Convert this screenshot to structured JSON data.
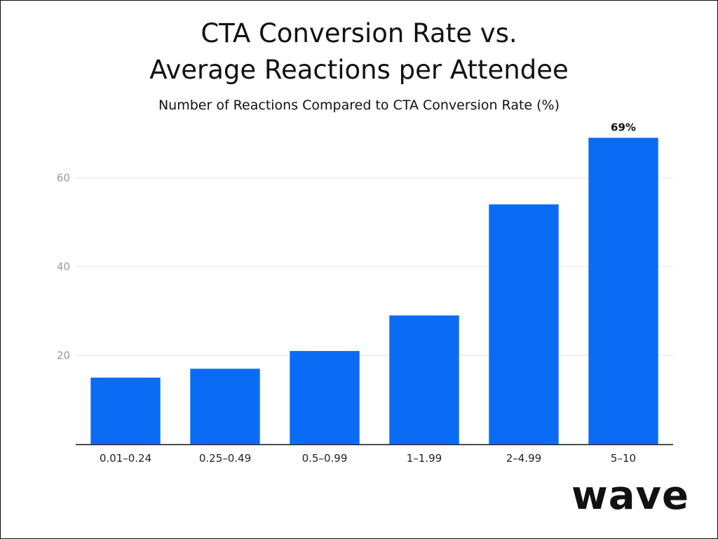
{
  "chart_data": {
    "type": "bar",
    "title_line1": "CTA Conversion Rate vs.",
    "title_line2": "Average Reactions per Attendee",
    "subtitle": "Number of Reactions Compared to CTA Conversion Rate (%)",
    "categories": [
      "0.01–0.24",
      "0.25–0.49",
      "0.5–0.99",
      "1–1.99",
      "2–4.99",
      "5–10"
    ],
    "values": [
      15,
      17,
      21,
      29,
      54,
      69
    ],
    "data_labels": [
      "",
      "",
      "",
      "",
      "",
      "69%"
    ],
    "y_ticks": [
      20,
      40,
      60
    ],
    "ylim": [
      0,
      70
    ],
    "grid": true,
    "bar_color": "#0a6cf5",
    "xlabel": "",
    "ylabel": ""
  },
  "brand": {
    "logo_text": "wave"
  }
}
